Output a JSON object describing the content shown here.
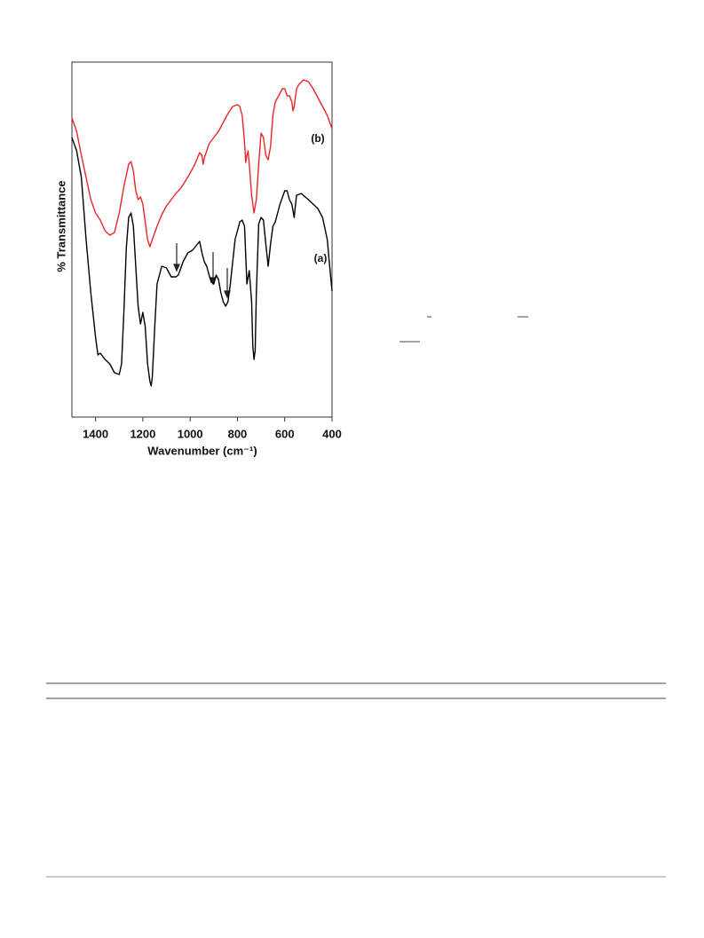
{
  "chart_data": {
    "type": "line",
    "xlabel": "Wavenumber (cm⁻¹)",
    "ylabel": "% Transmittance",
    "xlim": [
      1500,
      400
    ],
    "ylim": [
      0,
      100
    ],
    "xticks": [
      1400,
      1200,
      1000,
      800,
      600,
      400
    ],
    "series": [
      {
        "name": "(a)",
        "color": "#000000",
        "x": [
          1500,
          1480,
          1460,
          1440,
          1420,
          1400,
          1390,
          1380,
          1360,
          1340,
          1320,
          1300,
          1290,
          1280,
          1270,
          1260,
          1250,
          1240,
          1230,
          1220,
          1210,
          1200,
          1195,
          1190,
          1180,
          1170,
          1165,
          1160,
          1150,
          1140,
          1120,
          1100,
          1080,
          1060,
          1050,
          1030,
          1010,
          990,
          960,
          950,
          940,
          930,
          920,
          910,
          900,
          890,
          880,
          870,
          860,
          850,
          840,
          830,
          810,
          790,
          780,
          770,
          760,
          750,
          740,
          735,
          730,
          725,
          720,
          710,
          700,
          690,
          680,
          670,
          660,
          650,
          640,
          620,
          600,
          590,
          580,
          570,
          560,
          555,
          550,
          530,
          500,
          480,
          460,
          440,
          420,
          410,
          400
        ],
        "values": [
          78.75,
          75,
          67.5,
          50,
          35,
          22.5,
          17.5,
          18,
          16.25,
          15,
          12.5,
          12,
          15,
          30,
          47.5,
          56.25,
          57.5,
          53.75,
          42.5,
          31.25,
          26.25,
          29.5,
          27.5,
          25.5,
          15,
          10,
          8.75,
          11.25,
          25,
          37.5,
          42.5,
          42,
          39.5,
          39.5,
          40,
          43.75,
          46.25,
          47,
          49.5,
          46.25,
          43.75,
          42.5,
          40,
          38,
          37.5,
          40,
          38.75,
          35,
          32.5,
          31.25,
          32.5,
          37.5,
          50,
          55,
          55.5,
          53.75,
          37.5,
          41.25,
          32.5,
          20,
          16.25,
          18.75,
          35,
          54.5,
          56.25,
          55.5,
          48.75,
          42.5,
          48.75,
          53.75,
          55,
          60,
          63.75,
          63.75,
          61.25,
          60,
          56.25,
          59.5,
          62.5,
          63,
          61.25,
          60,
          58.75,
          56.25,
          50,
          42.5,
          35.5
        ]
      },
      {
        "name": "(b)",
        "color": "#e8262b",
        "x": [
          1500,
          1480,
          1460,
          1440,
          1420,
          1400,
          1380,
          1360,
          1340,
          1320,
          1300,
          1280,
          1260,
          1250,
          1240,
          1230,
          1220,
          1210,
          1200,
          1190,
          1180,
          1170,
          1160,
          1140,
          1120,
          1100,
          1080,
          1060,
          1040,
          1020,
          1000,
          980,
          960,
          950,
          945,
          940,
          920,
          900,
          880,
          860,
          840,
          820,
          800,
          790,
          780,
          770,
          765,
          760,
          755,
          750,
          740,
          730,
          720,
          710,
          700,
          690,
          680,
          670,
          660,
          650,
          640,
          620,
          610,
          600,
          590,
          580,
          570,
          565,
          560,
          550,
          540,
          520,
          500,
          480,
          460,
          440,
          420,
          400
        ],
        "values": [
          84.25,
          80.5,
          73.75,
          67.5,
          61.25,
          57.5,
          55.5,
          52.5,
          51.25,
          52,
          57.5,
          65,
          71.25,
          72,
          69.25,
          63.75,
          61.25,
          62,
          60,
          55,
          50,
          48,
          50,
          53.75,
          57,
          59.5,
          61.25,
          63,
          64.5,
          66.5,
          68.75,
          71.25,
          74.5,
          73.75,
          71.25,
          73,
          77,
          78.75,
          80.5,
          83,
          85.5,
          87.5,
          88,
          87.5,
          85,
          77.5,
          71.75,
          73.75,
          75,
          71.25,
          62.5,
          57.5,
          61.25,
          71.25,
          80,
          78.75,
          73.75,
          72.5,
          76.25,
          85,
          88.75,
          91.25,
          92.5,
          92.5,
          90.5,
          90.5,
          88.75,
          86.25,
          87.5,
          92.5,
          93.75,
          95,
          94.5,
          92.5,
          90,
          87.5,
          85,
          81.25
        ]
      }
    ]
  }
}
